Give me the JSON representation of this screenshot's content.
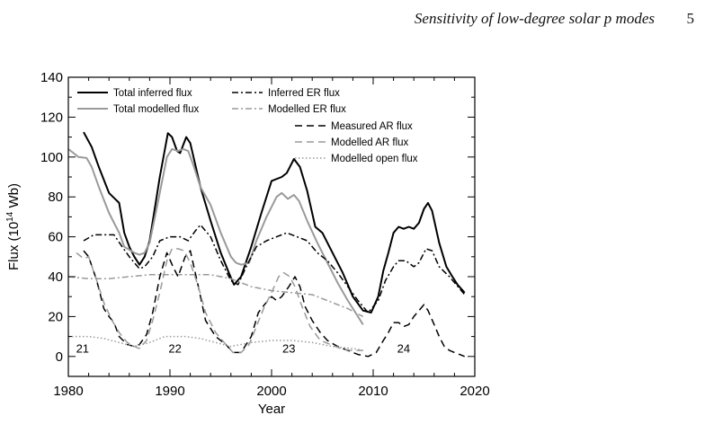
{
  "header": {
    "title": "Sensitivity of low-degree solar p modes",
    "page_number": "5"
  },
  "chart_data": {
    "type": "line",
    "xlabel": "Year",
    "ylabel_main": "Flux (10",
    "ylabel_sup": "14",
    "ylabel_tail": " Wb)",
    "xlim": [
      1980,
      2020
    ],
    "ylim": [
      -10,
      140
    ],
    "xticks": [
      1980,
      1990,
      2000,
      2010,
      2020
    ],
    "yticks": [
      0,
      20,
      40,
      60,
      80,
      100,
      120,
      140
    ],
    "grid": false,
    "legend_placement": "top",
    "cycle_labels": [
      {
        "text": "21",
        "x": 1981.4,
        "y": 2
      },
      {
        "text": "22",
        "x": 1990.5,
        "y": 2
      },
      {
        "text": "23",
        "x": 2001.7,
        "y": 2
      },
      {
        "text": "24",
        "x": 2013.0,
        "y": 2
      }
    ],
    "series": [
      {
        "name": "Total inferred flux",
        "color": "#000000",
        "dash": "solid",
        "points": [
          [
            1981.5,
            112.5
          ],
          [
            1982.3,
            105
          ],
          [
            1983,
            95
          ],
          [
            1984,
            82
          ],
          [
            1985,
            77
          ],
          [
            1985.5,
            62
          ],
          [
            1986,
            55
          ],
          [
            1986.5,
            50
          ],
          [
            1987,
            46
          ],
          [
            1987.5,
            50
          ],
          [
            1988,
            58
          ],
          [
            1989,
            90
          ],
          [
            1989.8,
            112
          ],
          [
            1990.2,
            110
          ],
          [
            1990.7,
            103
          ],
          [
            1991,
            102
          ],
          [
            1991.6,
            110
          ],
          [
            1992,
            107
          ],
          [
            1993,
            85
          ],
          [
            1994,
            68
          ],
          [
            1995,
            52
          ],
          [
            1995.8,
            42
          ],
          [
            1996.3,
            36
          ],
          [
            1997,
            40
          ],
          [
            1998,
            55
          ],
          [
            1999,
            72
          ],
          [
            2000,
            88
          ],
          [
            2001,
            90
          ],
          [
            2001.5,
            92
          ],
          [
            2002.2,
            99
          ],
          [
            2002.8,
            95
          ],
          [
            2003.5,
            83
          ],
          [
            2004.3,
            65
          ],
          [
            2005,
            62
          ],
          [
            2006,
            52
          ],
          [
            2007,
            42
          ],
          [
            2008,
            30
          ],
          [
            2009,
            23
          ],
          [
            2009.8,
            22
          ],
          [
            2010.5,
            30
          ],
          [
            2011,
            43
          ],
          [
            2011.5,
            52
          ],
          [
            2012,
            62
          ],
          [
            2012.5,
            65
          ],
          [
            2013,
            64
          ],
          [
            2013.5,
            65
          ],
          [
            2014,
            64
          ],
          [
            2014.5,
            67
          ],
          [
            2015,
            74
          ],
          [
            2015.4,
            77
          ],
          [
            2015.8,
            73
          ],
          [
            2016.5,
            57
          ],
          [
            2017.2,
            45
          ],
          [
            2017.8,
            40
          ],
          [
            2018.3,
            36
          ],
          [
            2019,
            32
          ]
        ]
      },
      {
        "name": "Total modelled flux",
        "color": "#9a9a9a",
        "dash": "solid",
        "points": [
          [
            1980,
            104
          ],
          [
            1980.5,
            102
          ],
          [
            1981,
            100
          ],
          [
            1981.8,
            99.5
          ],
          [
            1982.3,
            95
          ],
          [
            1983,
            85
          ],
          [
            1984,
            72
          ],
          [
            1985,
            62
          ],
          [
            1985.5,
            55
          ],
          [
            1986.5,
            52
          ],
          [
            1987,
            51
          ],
          [
            1987.5,
            52
          ],
          [
            1988,
            57
          ],
          [
            1989,
            82
          ],
          [
            1989.7,
            100
          ],
          [
            1990.2,
            104
          ],
          [
            1990.8,
            103
          ],
          [
            1991.3,
            104
          ],
          [
            1991.8,
            103
          ],
          [
            1992.3,
            96
          ],
          [
            1993,
            85
          ],
          [
            1994,
            76
          ],
          [
            1995,
            62
          ],
          [
            1996,
            50
          ],
          [
            1996.5,
            47
          ],
          [
            1997,
            46
          ],
          [
            1997.8,
            47
          ],
          [
            1998.5,
            58
          ],
          [
            1999.5,
            70
          ],
          [
            2000.5,
            80
          ],
          [
            2001,
            82
          ],
          [
            2001.6,
            79
          ],
          [
            2002.2,
            81
          ],
          [
            2002.7,
            78
          ],
          [
            2003.5,
            68
          ],
          [
            2004.5,
            57
          ],
          [
            2005.5,
            47
          ],
          [
            2006.5,
            37
          ],
          [
            2007.5,
            28
          ],
          [
            2008.5,
            20
          ],
          [
            2009,
            16
          ]
        ]
      },
      {
        "name": "Inferred ER flux",
        "color": "#000000",
        "dash": "7 3 2 3",
        "points": [
          [
            1981.5,
            58
          ],
          [
            1982.5,
            61
          ],
          [
            1983.5,
            61
          ],
          [
            1984.5,
            61
          ],
          [
            1985.3,
            55
          ],
          [
            1986,
            50
          ],
          [
            1986.5,
            47
          ],
          [
            1987,
            44
          ],
          [
            1987.5,
            45
          ],
          [
            1988.3,
            50
          ],
          [
            1989,
            58
          ],
          [
            1990,
            60
          ],
          [
            1991,
            60
          ],
          [
            1991.8,
            58
          ],
          [
            1992.5,
            63
          ],
          [
            1993,
            66
          ],
          [
            1994,
            60
          ],
          [
            1995,
            48
          ],
          [
            1996,
            38
          ],
          [
            1996.7,
            36
          ],
          [
            1997.5,
            45
          ],
          [
            1998.5,
            55
          ],
          [
            1999.5,
            58
          ],
          [
            2000.5,
            60
          ],
          [
            2001.5,
            62
          ],
          [
            2002.5,
            60
          ],
          [
            2003.5,
            58
          ],
          [
            2004.5,
            52
          ],
          [
            2005.5,
            48
          ],
          [
            2006.5,
            42
          ],
          [
            2007.5,
            35
          ],
          [
            2008.5,
            28
          ],
          [
            2009.5,
            22
          ],
          [
            2010.5,
            28
          ],
          [
            2011.2,
            38
          ],
          [
            2012,
            45
          ],
          [
            2012.5,
            48
          ],
          [
            2013.2,
            48
          ],
          [
            2014,
            45
          ],
          [
            2014.5,
            47
          ],
          [
            2015.2,
            54
          ],
          [
            2015.8,
            53
          ],
          [
            2016.5,
            45
          ],
          [
            2017.5,
            40
          ],
          [
            2018.5,
            34
          ],
          [
            2019,
            31
          ]
        ]
      },
      {
        "name": "Modelled ER flux",
        "color": "#9a9a9a",
        "dash": "7 3 2 3",
        "points": [
          [
            1980,
            40
          ],
          [
            1982,
            39
          ],
          [
            1984,
            39
          ],
          [
            1986,
            40
          ],
          [
            1988,
            41
          ],
          [
            1990,
            41
          ],
          [
            1992,
            41
          ],
          [
            1994,
            41
          ],
          [
            1996,
            39
          ],
          [
            1998,
            35
          ],
          [
            2000,
            33
          ],
          [
            2002,
            32
          ],
          [
            2004,
            31
          ],
          [
            2006,
            27
          ],
          [
            2007.5,
            24
          ],
          [
            2009,
            20
          ]
        ]
      },
      {
        "name": "Measured AR flux",
        "color": "#000000",
        "dash": "8 5",
        "points": [
          [
            1981.5,
            53
          ],
          [
            1982,
            50
          ],
          [
            1982.8,
            38
          ],
          [
            1983.5,
            24
          ],
          [
            1984,
            20
          ],
          [
            1984.5,
            17
          ],
          [
            1985,
            10
          ],
          [
            1985.8,
            6
          ],
          [
            1986.5,
            5
          ],
          [
            1987,
            6
          ],
          [
            1987.7,
            11
          ],
          [
            1988.3,
            22
          ],
          [
            1989,
            40
          ],
          [
            1989.7,
            52
          ],
          [
            1990.3,
            45
          ],
          [
            1990.8,
            40
          ],
          [
            1991.5,
            50
          ],
          [
            1992,
            53
          ],
          [
            1992.8,
            35
          ],
          [
            1993.5,
            18
          ],
          [
            1994.5,
            10
          ],
          [
            1995.5,
            6
          ],
          [
            1996.2,
            2
          ],
          [
            1997,
            2
          ],
          [
            1998,
            10
          ],
          [
            1998.7,
            22
          ],
          [
            1999.3,
            26
          ],
          [
            2000,
            30
          ],
          [
            2000.5,
            28
          ],
          [
            2001,
            30
          ],
          [
            2001.7,
            35
          ],
          [
            2002.3,
            40
          ],
          [
            2002.8,
            35
          ],
          [
            2003.3,
            25
          ],
          [
            2004,
            18
          ],
          [
            2004.8,
            12
          ],
          [
            2005.5,
            8
          ],
          [
            2006.5,
            5
          ],
          [
            2007.5,
            3
          ],
          [
            2008.5,
            1
          ],
          [
            2009.5,
            0
          ],
          [
            2010.3,
            2
          ],
          [
            2011,
            8
          ],
          [
            2011.5,
            12
          ],
          [
            2012,
            17
          ],
          [
            2012.5,
            17
          ],
          [
            2013,
            15
          ],
          [
            2013.5,
            16
          ],
          [
            2014,
            20
          ],
          [
            2014.5,
            23
          ],
          [
            2015,
            26
          ],
          [
            2015.4,
            23
          ],
          [
            2016,
            16
          ],
          [
            2016.5,
            10
          ],
          [
            2017,
            5
          ],
          [
            2017.5,
            3
          ],
          [
            2018,
            2
          ],
          [
            2018.5,
            1
          ],
          [
            2019,
            0
          ]
        ]
      },
      {
        "name": "Modelled AR flux",
        "color": "#9a9a9a",
        "dash": "8 5",
        "points": [
          [
            1980.8,
            52
          ],
          [
            1981.5,
            49
          ],
          [
            1982,
            50
          ],
          [
            1982.8,
            38
          ],
          [
            1983.5,
            27
          ],
          [
            1984.3,
            18
          ],
          [
            1985,
            12
          ],
          [
            1985.8,
            7
          ],
          [
            1986.5,
            5
          ],
          [
            1987,
            4
          ],
          [
            1987.7,
            8
          ],
          [
            1988.3,
            18
          ],
          [
            1989,
            32
          ],
          [
            1989.7,
            48
          ],
          [
            1990.2,
            54
          ],
          [
            1990.8,
            54
          ],
          [
            1991.4,
            53
          ],
          [
            1992,
            47
          ],
          [
            1992.8,
            35
          ],
          [
            1993.5,
            22
          ],
          [
            1994.5,
            12
          ],
          [
            1995.5,
            6
          ],
          [
            1996.2,
            2
          ],
          [
            1997,
            2
          ],
          [
            1997.8,
            6
          ],
          [
            1998.5,
            15
          ],
          [
            1999.3,
            25
          ],
          [
            2000,
            32
          ],
          [
            2000.7,
            40
          ],
          [
            2001.2,
            42
          ],
          [
            2001.8,
            40
          ],
          [
            2002.3,
            35
          ],
          [
            2003,
            25
          ],
          [
            2003.8,
            15
          ],
          [
            2004.8,
            8
          ],
          [
            2005.8,
            6
          ],
          [
            2006.8,
            4
          ],
          [
            2007.8,
            3
          ],
          [
            2008.5,
            3
          ],
          [
            2009,
            3
          ]
        ]
      },
      {
        "name": "Modelled open flux",
        "color": "#9a9a9a",
        "dash": "1.5 2.5",
        "points": [
          [
            1980,
            10
          ],
          [
            1982,
            10
          ],
          [
            1983.5,
            9
          ],
          [
            1985,
            7
          ],
          [
            1986.5,
            5
          ],
          [
            1988,
            7
          ],
          [
            1989.5,
            10
          ],
          [
            1991.5,
            10
          ],
          [
            1993,
            9
          ],
          [
            1994.5,
            7
          ],
          [
            1996,
            5
          ],
          [
            1998,
            7
          ],
          [
            2000,
            8
          ],
          [
            2002,
            8
          ],
          [
            2004,
            7
          ],
          [
            2006,
            5
          ],
          [
            2008,
            4
          ],
          [
            2009,
            3
          ]
        ]
      }
    ]
  }
}
